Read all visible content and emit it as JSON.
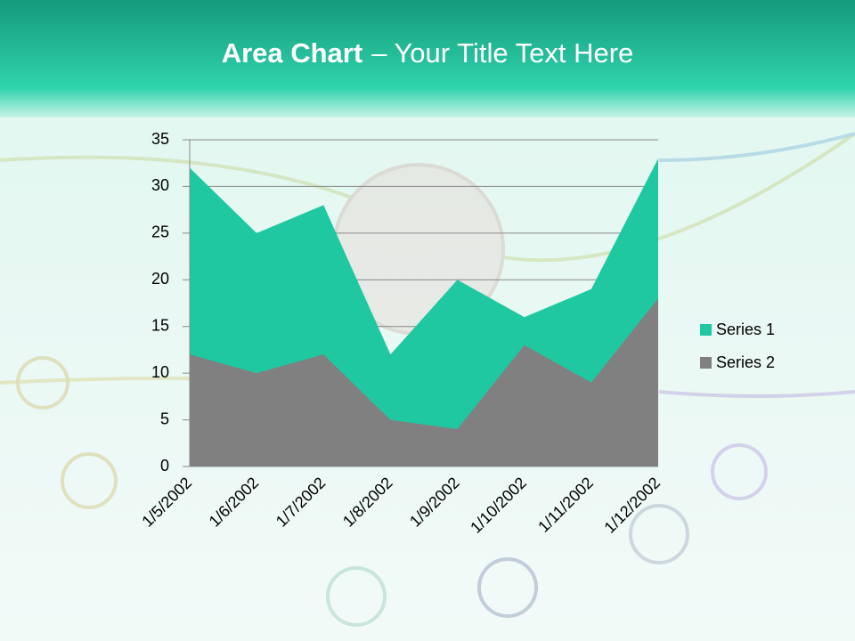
{
  "slide": {
    "title_bold": "Area Chart",
    "title_rest": "– Your Title Text Here"
  },
  "chart_data": {
    "type": "area",
    "categories": [
      "1/5/2002",
      "1/6/2002",
      "1/7/2002",
      "1/8/2002",
      "1/9/2002",
      "1/10/2002",
      "1/11/2002",
      "1/12/2002"
    ],
    "series": [
      {
        "name": "Series 1",
        "color": "#1fc8a0",
        "values": [
          32,
          25,
          28,
          12,
          20,
          16,
          19,
          33
        ]
      },
      {
        "name": "Series 2",
        "color": "#808080",
        "values": [
          12,
          10,
          12,
          5,
          4,
          13,
          9,
          18
        ]
      }
    ],
    "ylim": [
      0,
      35
    ],
    "yticks": [
      0,
      5,
      10,
      15,
      20,
      25,
      30,
      35
    ],
    "grid": true,
    "legend": "right"
  }
}
